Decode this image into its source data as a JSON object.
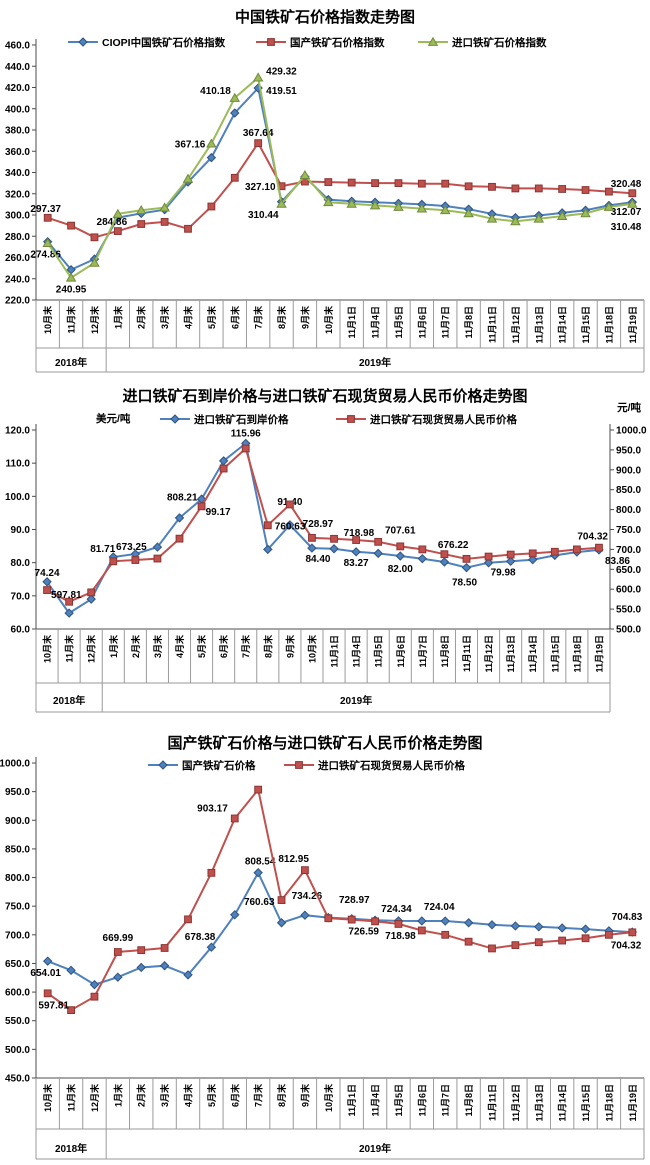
{
  "chart_data": [
    {
      "type": "line",
      "title": "中国铁矿石价格指数走势图",
      "legend_position": "top",
      "grid": false,
      "categories": [
        "10月末",
        "11月末",
        "12月末",
        "1月末",
        "2月末",
        "3月末",
        "4月末",
        "5月末",
        "6月末",
        "7月末",
        "8月末",
        "9月末",
        "10月末",
        "11月1日",
        "11月4日",
        "11月5日",
        "11月6日",
        "11月7日",
        "11月8日",
        "11月11日",
        "11月12日",
        "11月13日",
        "11月14日",
        "11月15日",
        "11月18日",
        "11月19日"
      ],
      "year_groups": [
        {
          "label": "2018年",
          "count": 3
        },
        {
          "label": "2019年",
          "count": 23
        }
      ],
      "y_axis": {
        "min": 220,
        "max": 460,
        "step": 20
      },
      "series": [
        {
          "name": "CIOPI中国铁矿石价格指数",
          "color": "#4F81BD",
          "marker": "diamond",
          "axis": "left",
          "values": [
            274.86,
            248.5,
            258.5,
            297.5,
            301.5,
            305.0,
            331.0,
            354.0,
            396.0,
            419.51,
            312.5,
            336.0,
            314.5,
            313.0,
            312.0,
            311.0,
            310.0,
            308.5,
            305.5,
            301.0,
            297.5,
            299.5,
            302.0,
            304.5,
            309.0,
            312.07
          ],
          "labels": [
            {
              "i": 0,
              "text": "274.86",
              "dx": -2,
              "dy": 16,
              "a": "middle"
            },
            {
              "i": 9,
              "text": "419.51",
              "dx": 8,
              "dy": 6,
              "a": "start"
            },
            {
              "i": 25,
              "text": "312.07",
              "dx": 9,
              "dy": 13,
              "a": "end"
            }
          ]
        },
        {
          "name": "国产铁矿石价格指数",
          "color": "#C0504D",
          "marker": "square",
          "axis": "left",
          "values": [
            297.37,
            290.0,
            279.0,
            284.86,
            291.5,
            293.5,
            287.0,
            308.0,
            335.0,
            367.64,
            327.1,
            331.5,
            331.0,
            330.5,
            330.0,
            330.0,
            329.5,
            329.5,
            327.0,
            326.5,
            325.0,
            325.0,
            324.5,
            323.5,
            322.0,
            320.48
          ],
          "labels": [
            {
              "i": 0,
              "text": "297.37",
              "dx": -2,
              "dy": -6,
              "a": "middle"
            },
            {
              "i": 3,
              "text": "284.86",
              "dx": -6,
              "dy": -6,
              "a": "middle"
            },
            {
              "i": 9,
              "text": "367.64",
              "dx": 0,
              "dy": -7,
              "a": "middle"
            },
            {
              "i": 10,
              "text": "327.10",
              "dx": -6,
              "dy": 4,
              "a": "end"
            },
            {
              "i": 25,
              "text": "320.48",
              "dx": 9,
              "dy": -6,
              "a": "end"
            }
          ]
        },
        {
          "name": "进口铁矿石价格指数",
          "color": "#9BBB59",
          "marker": "triangle",
          "axis": "left",
          "values": [
            273.5,
            240.95,
            255.0,
            301.0,
            304.5,
            307.0,
            334.0,
            367.16,
            410.18,
            429.32,
            310.44,
            337.5,
            312.0,
            310.5,
            309.0,
            307.5,
            306.0,
            304.5,
            301.5,
            296.5,
            294.0,
            296.5,
            299.0,
            301.5,
            307.5,
            310.48
          ],
          "labels": [
            {
              "i": 1,
              "text": "240.95",
              "dx": 0,
              "dy": 15,
              "a": "middle"
            },
            {
              "i": 7,
              "text": "367.16",
              "dx": -6,
              "dy": 4,
              "a": "end"
            },
            {
              "i": 8,
              "text": "410.18",
              "dx": -4,
              "dy": -4,
              "a": "end"
            },
            {
              "i": 9,
              "text": "429.32",
              "dx": 8,
              "dy": -3,
              "a": "start"
            },
            {
              "i": 10,
              "text": "310.44",
              "dx": -3,
              "dy": 14,
              "a": "end"
            },
            {
              "i": 25,
              "text": "310.48",
              "dx": 9,
              "dy": 26,
              "a": "end"
            }
          ]
        }
      ]
    },
    {
      "type": "line",
      "title": "进口铁矿石到岸价格与进口铁矿石现货贸易人民币价格走势图",
      "unit_left": "美元/吨",
      "unit_right": "元/吨",
      "legend_position": "top",
      "grid": false,
      "categories": [
        "10月末",
        "11月末",
        "12月末",
        "1月末",
        "2月末",
        "3月末",
        "4月末",
        "5月末",
        "6月末",
        "7月末",
        "8月末",
        "9月末",
        "10月末",
        "11月1日",
        "11月4日",
        "11月5日",
        "11月6日",
        "11月7日",
        "11月8日",
        "11月11日",
        "11月12日",
        "11月13日",
        "11月14日",
        "11月15日",
        "11月18日",
        "11月19日"
      ],
      "year_groups": [
        {
          "label": "2018年",
          "count": 3
        },
        {
          "label": "2019年",
          "count": 23
        }
      ],
      "y_axis": {
        "min": 60,
        "max": 120,
        "step": 10
      },
      "y_axis_right": {
        "min": 500,
        "max": 1000,
        "step": 50
      },
      "series": [
        {
          "name": "进口铁矿石到岸价格",
          "color": "#4F81BD",
          "marker": "diamond",
          "axis": "left",
          "values": [
            74.24,
            64.8,
            69.0,
            81.71,
            82.6,
            84.7,
            93.5,
            99.17,
            110.7,
            115.96,
            84.0,
            91.4,
            84.4,
            84.2,
            83.27,
            82.8,
            82.0,
            81.2,
            80.2,
            78.5,
            79.98,
            80.4,
            80.9,
            82.2,
            83.2,
            83.86
          ],
          "labels": [
            {
              "i": 0,
              "text": "74.24",
              "dx": 0,
              "dy": -6,
              "a": "middle"
            },
            {
              "i": 3,
              "text": "81.71",
              "dx": 2,
              "dy": -5,
              "a": "end"
            },
            {
              "i": 7,
              "text": "99.17",
              "dx": 4,
              "dy": 16,
              "a": "start"
            },
            {
              "i": 9,
              "text": "115.96",
              "dx": 0,
              "dy": -7,
              "a": "middle"
            },
            {
              "i": 11,
              "text": "91.40",
              "dx": 0,
              "dy": -20,
              "a": "middle"
            },
            {
              "i": 12,
              "text": "84.40",
              "dx": 6,
              "dy": 14,
              "a": "middle"
            },
            {
              "i": 14,
              "text": "83.27",
              "dx": 0,
              "dy": 14,
              "a": "middle"
            },
            {
              "i": 16,
              "text": "82.00",
              "dx": 0,
              "dy": 16,
              "a": "middle"
            },
            {
              "i": 19,
              "text": "78.50",
              "dx": -2,
              "dy": 18,
              "a": "middle"
            },
            {
              "i": 20,
              "text": "79.98",
              "dx": 2,
              "dy": 13,
              "a": "start"
            },
            {
              "i": 25,
              "text": "83.86",
              "dx": 6,
              "dy": 14,
              "a": "start"
            }
          ]
        },
        {
          "name": "进口铁矿石现货贸易人民币价格",
          "color": "#C0504D",
          "marker": "square",
          "axis": "right",
          "values": [
            597.81,
            568.5,
            592.0,
            669.99,
            673.25,
            677.0,
            727.0,
            808.21,
            903.17,
            953.5,
            760.63,
            812.95,
            728.97,
            726.59,
            723.5,
            718.98,
            707.61,
            700.0,
            688.0,
            676.22,
            682.0,
            687.0,
            690.0,
            694.0,
            700.0,
            704.32
          ],
          "labels": [
            {
              "i": 0,
              "text": "597.81",
              "dx": 4,
              "dy": 8,
              "a": "start"
            },
            {
              "i": 4,
              "text": "673.25",
              "dx": -4,
              "dy": -10,
              "a": "middle"
            },
            {
              "i": 7,
              "text": "808.21",
              "dx": -4,
              "dy": -6,
              "a": "end"
            },
            {
              "i": 10,
              "text": "760.63",
              "dx": 7,
              "dy": 4,
              "a": "start"
            },
            {
              "i": 12,
              "text": "728.97",
              "dx": 6,
              "dy": -11,
              "a": "middle"
            },
            {
              "i": 15,
              "text": "718.98",
              "dx": -4,
              "dy": -6,
              "a": "end"
            },
            {
              "i": 16,
              "text": "707.61",
              "dx": 0,
              "dy": -13,
              "a": "middle"
            },
            {
              "i": 19,
              "text": "676.22",
              "dx": 2,
              "dy": -11,
              "a": "end"
            },
            {
              "i": 25,
              "text": "704.32",
              "dx": 9,
              "dy": -8,
              "a": "end"
            }
          ]
        }
      ]
    },
    {
      "type": "line",
      "title": "国产铁矿石价格与进口铁矿石人民币价格走势图",
      "legend_position": "top",
      "grid": false,
      "categories": [
        "10月末",
        "11月末",
        "12月末",
        "1月末",
        "2月末",
        "3月末",
        "4月末",
        "5月末",
        "6月末",
        "7月末",
        "8月末",
        "9月末",
        "10月末",
        "11月1日",
        "11月4日",
        "11月5日",
        "11月6日",
        "11月7日",
        "11月8日",
        "11月11日",
        "11月12日",
        "11月13日",
        "11月14日",
        "11月15日",
        "11月18日",
        "11月19日"
      ],
      "year_groups": [
        {
          "label": "2018年",
          "count": 3
        },
        {
          "label": "2019年",
          "count": 23
        }
      ],
      "y_axis": {
        "min": 450,
        "max": 1000,
        "step": 50
      },
      "series": [
        {
          "name": "国产铁矿石价格",
          "color": "#4F81BD",
          "marker": "diamond",
          "axis": "left",
          "values": [
            654.01,
            638.0,
            613.0,
            626.0,
            643.0,
            646.0,
            630.0,
            678.38,
            735.0,
            808.54,
            721.0,
            734.26,
            730.0,
            728.0,
            725.5,
            724.34,
            724.2,
            724.04,
            721.0,
            717.5,
            715.5,
            714.0,
            712.0,
            710.0,
            707.0,
            704.83
          ],
          "labels": [
            {
              "i": 0,
              "text": "654.01",
              "dx": -2,
              "dy": 15,
              "a": "middle"
            },
            {
              "i": 7,
              "text": "678.38",
              "dx": 4,
              "dy": -7,
              "a": "end"
            },
            {
              "i": 9,
              "text": "808.54",
              "dx": 2,
              "dy": -8,
              "a": "middle"
            },
            {
              "i": 11,
              "text": "734.26",
              "dx": 2,
              "dy": -16,
              "a": "middle"
            },
            {
              "i": 15,
              "text": "724.34",
              "dx": -2,
              "dy": -9,
              "a": "middle"
            },
            {
              "i": 17,
              "text": "724.04",
              "dx": -6,
              "dy": -11,
              "a": "middle"
            },
            {
              "i": 25,
              "text": "704.83",
              "dx": 10,
              "dy": -12,
              "a": "end"
            }
          ]
        },
        {
          "name": "进口铁矿石现货贸易人民币价格",
          "color": "#C0504D",
          "marker": "square",
          "axis": "left",
          "values": [
            597.81,
            568.5,
            592.0,
            669.99,
            673.25,
            677.0,
            727.0,
            808.21,
            903.17,
            953.5,
            760.63,
            812.95,
            728.97,
            726.59,
            723.5,
            718.98,
            707.61,
            700.0,
            688.0,
            676.22,
            682.0,
            687.0,
            690.0,
            694.0,
            700.0,
            704.32
          ],
          "labels": [
            {
              "i": 0,
              "text": "597.81",
              "dx": 6,
              "dy": 15,
              "a": "middle"
            },
            {
              "i": 3,
              "text": "669.99",
              "dx": 0,
              "dy": -11,
              "a": "middle"
            },
            {
              "i": 8,
              "text": "903.17",
              "dx": -7,
              "dy": -7,
              "a": "end"
            },
            {
              "i": 10,
              "text": "760.63",
              "dx": -7,
              "dy": 5,
              "a": "end"
            },
            {
              "i": 11,
              "text": "812.95",
              "dx": 4,
              "dy": -8,
              "a": "end"
            },
            {
              "i": 12,
              "text": "728.97",
              "dx": 26,
              "dy": -15,
              "a": "middle"
            },
            {
              "i": 13,
              "text": "726.59",
              "dx": 12,
              "dy": 15,
              "a": "middle"
            },
            {
              "i": 15,
              "text": "718.98",
              "dx": 2,
              "dy": 15,
              "a": "middle"
            },
            {
              "i": 25,
              "text": "704.32",
              "dx": 9,
              "dy": 16,
              "a": "end"
            }
          ]
        }
      ]
    }
  ]
}
